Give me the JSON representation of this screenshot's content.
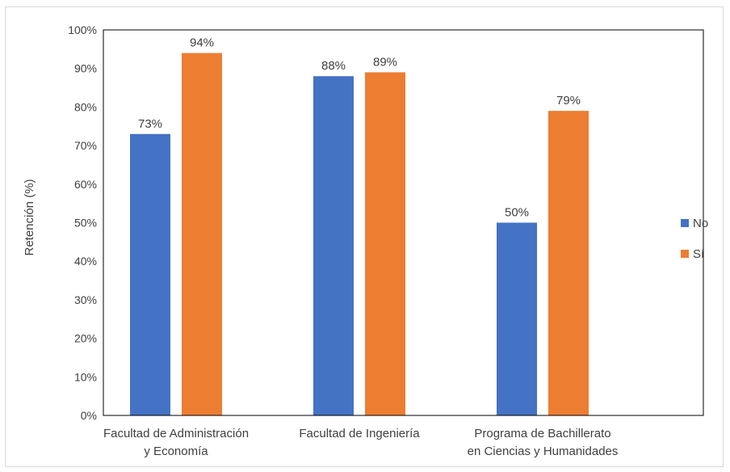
{
  "chart_data": {
    "type": "bar",
    "title": "",
    "xlabel": "",
    "ylabel": "Retención (%)",
    "ylim": [
      0,
      100
    ],
    "yticks": [
      "0%",
      "10%",
      "20%",
      "30%",
      "40%",
      "50%",
      "60%",
      "70%",
      "80%",
      "90%",
      "100%"
    ],
    "categories": [
      [
        "Facultad de Administración",
        "y Economía"
      ],
      [
        "Facultad de Ingeniería"
      ],
      [
        "Programa de Bachillerato",
        "en Ciencias y Humanidades"
      ]
    ],
    "series": [
      {
        "name": "No",
        "color": "#4472c4",
        "values": [
          73,
          88,
          50
        ],
        "labels": [
          "73%",
          "88%",
          "50%"
        ]
      },
      {
        "name": "Sí",
        "color": "#ed7d31",
        "values": [
          94,
          89,
          79
        ],
        "labels": [
          "94%",
          "89%",
          "79%"
        ]
      }
    ],
    "legend_position": "right",
    "grid": false
  }
}
